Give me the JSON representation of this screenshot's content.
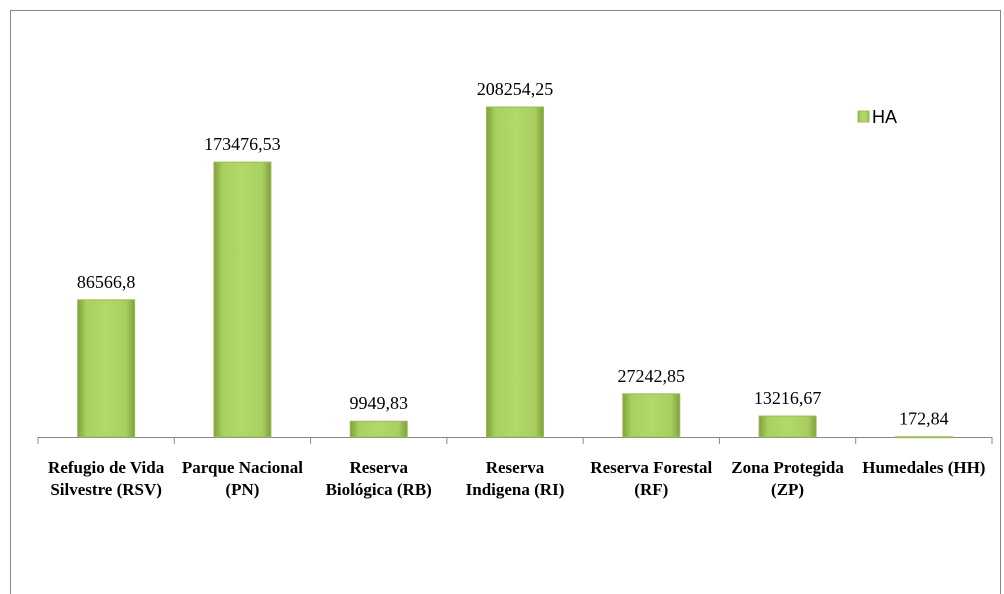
{
  "chart_data": {
    "type": "bar",
    "categories": [
      "Refugio de Vida Silvestre (RSV)",
      "Parque Nacional (PN)",
      "Reserva Biológica (RB)",
      "Reserva Indigena (RI)",
      "Reserva Forestal (RF)",
      "Zona Protegida (ZP)",
      "Humedales (HH)"
    ],
    "series": [
      {
        "name": "HA",
        "color": "#9bbb59",
        "values": [
          86566.8,
          173476.53,
          9949.83,
          208254.25,
          27242.85,
          13216.67,
          172.84
        ],
        "value_labels": [
          "86566,8",
          "173476,53",
          "9949,83",
          "208254,25",
          "27242,85",
          "13216,67",
          "172,84"
        ]
      }
    ],
    "legend": "top-right"
  }
}
